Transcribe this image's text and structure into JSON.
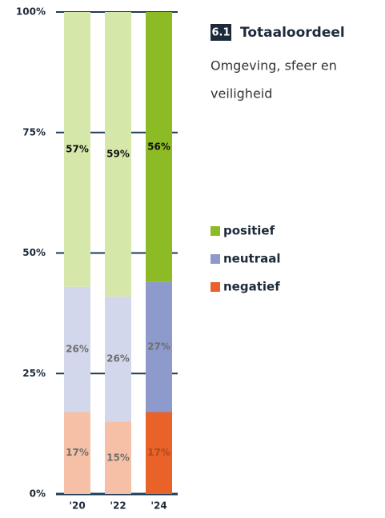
{
  "chart_data": {
    "type": "stacked_bar",
    "section_number": "6.1",
    "title": "Totaaloordeel",
    "subtitle": [
      "Omgeving, sfeer en",
      "veiligheid"
    ],
    "categories": [
      "'20",
      "'22",
      "'24"
    ],
    "series": [
      {
        "name": "negatief",
        "color": "#e8622a",
        "bar_colors": [
          "#f6c0a6",
          "#f6c0a6",
          "#e8622a"
        ],
        "values": [
          17,
          15,
          17
        ],
        "value_labels": [
          "17%",
          "15%",
          "17%"
        ]
      },
      {
        "name": "neutraal",
        "color": "#8e9acb",
        "bar_colors": [
          "#d3d7eb",
          "#d3d7eb",
          "#8e9acb"
        ],
        "values": [
          26,
          26,
          27
        ],
        "value_labels": [
          "26%",
          "26%",
          "27%"
        ]
      },
      {
        "name": "positief",
        "color": "#8dbb25",
        "bar_colors": [
          "#d6e8a9",
          "#d6e8a9",
          "#8dbb25"
        ],
        "values": [
          57,
          59,
          56
        ],
        "value_labels": [
          "57%",
          "59%",
          "56%"
        ]
      }
    ],
    "ylim": [
      0,
      100
    ],
    "yticks": [
      {
        "value": 0,
        "label": "0%"
      },
      {
        "value": 25,
        "label": "25%"
      },
      {
        "value": 50,
        "label": "50%"
      },
      {
        "value": 75,
        "label": "75%"
      },
      {
        "value": 100,
        "label": "100%"
      }
    ],
    "grid": true
  }
}
